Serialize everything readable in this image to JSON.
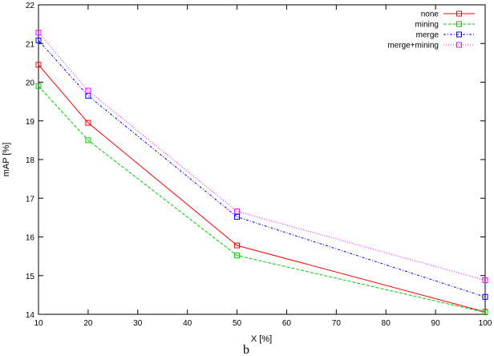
{
  "chart_data": {
    "type": "line",
    "xlabel": "X [%]",
    "ylabel": "mAP [%]",
    "caption": "b",
    "xlim": [
      10,
      100
    ],
    "ylim": [
      14,
      22
    ],
    "xticks": [
      10,
      20,
      30,
      40,
      50,
      60,
      70,
      80,
      90,
      100
    ],
    "yticks": [
      14,
      15,
      16,
      17,
      18,
      19,
      20,
      21,
      22
    ],
    "legend_position": "top-right",
    "grid": false,
    "x": [
      10,
      20,
      50,
      100
    ],
    "series": [
      {
        "name": "none",
        "values": [
          20.45,
          18.95,
          15.78,
          14.06
        ],
        "color": "#ff0000",
        "dash": "solid"
      },
      {
        "name": "mining",
        "values": [
          19.9,
          18.5,
          15.52,
          14.05
        ],
        "color": "#00cc00",
        "dash": "dashed"
      },
      {
        "name": "merge",
        "values": [
          21.08,
          19.65,
          16.52,
          14.45
        ],
        "color": "#0000ff",
        "dash": "dotted-dashed"
      },
      {
        "name": "merge+mining",
        "values": [
          21.28,
          19.78,
          16.66,
          14.88
        ],
        "color": "#ff00ff",
        "dash": "dotted"
      }
    ]
  }
}
